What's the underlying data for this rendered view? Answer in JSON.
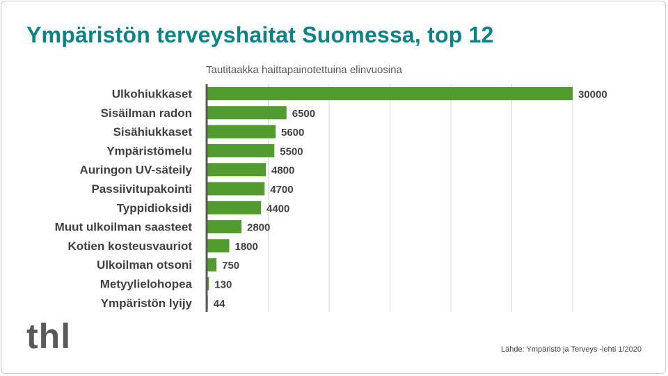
{
  "title": "Ympäristön terveyshaitat Suomessa, top 12",
  "logo_text": "thl",
  "source": "Lähde: Ympäristö ja Terveys -lehti 1/2020",
  "colors": {
    "title": "#0e8385",
    "bar": "#529b2f",
    "axis": "#595959",
    "grid": "#d9d9d9"
  },
  "chart_data": {
    "type": "bar",
    "orientation": "horizontal",
    "title": "Tautitaakka haittapainotettuina elinvuosina",
    "categories": [
      "Ulkohiukkaset",
      "Sisäilman radon",
      "Sisähiukkaset",
      "Ympäristömelu",
      "Auringon UV-säteily",
      "Passiivitupakointi",
      "Typpidioksidi",
      "Muut ulkoilman saasteet",
      "Kotien kosteusvauriot",
      "Ulkoilman otsoni",
      "Metyylielohopea",
      "Ympäristön lyijy"
    ],
    "values": [
      30000,
      6500,
      5600,
      5500,
      4800,
      4700,
      4400,
      2800,
      1800,
      750,
      130,
      44
    ],
    "data_labels": [
      "30000",
      "6500",
      "5600",
      "5500",
      "4800",
      "4700",
      "4400",
      "2800",
      "1800",
      "750",
      "130",
      "44"
    ],
    "xlim": [
      0,
      30000
    ],
    "grid_interval": 5000,
    "grid": true,
    "legend": "none"
  }
}
